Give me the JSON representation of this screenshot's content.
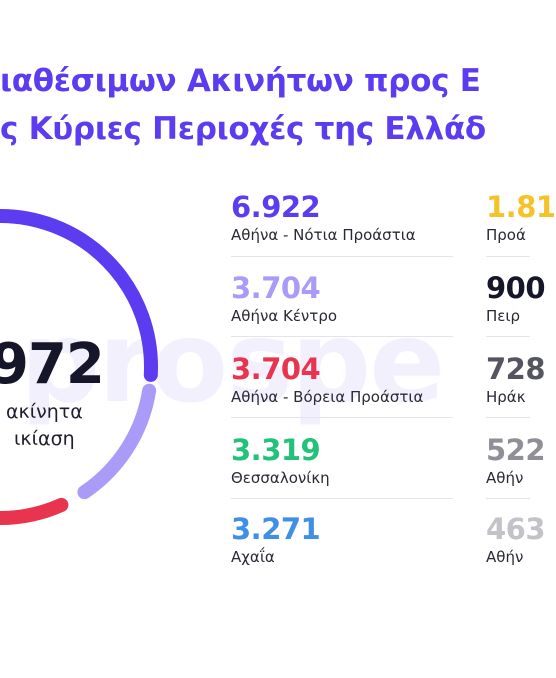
{
  "title": {
    "line1": "ιαθέσιμων Ακινήτων προς Ε",
    "line2": "ς Κύριες Περιοχές της Ελλάδ"
  },
  "watermark": "prospe",
  "total": {
    "value": "972",
    "line1": "ακίνητα",
    "line2": "ικίαση"
  },
  "chart_data": {
    "type": "pie",
    "style": "donut",
    "categories": [
      "Αθήνα - Νότια Προάστια",
      "Αθήνα Κέντρο",
      "Αθήνα - Βόρεια Προάστια"
    ],
    "values": [
      6922,
      3704,
      3704
    ],
    "colors": [
      "#5b3cf0",
      "#a99bf7",
      "#e8344e"
    ]
  },
  "stats": {
    "left": [
      {
        "value": "6.922",
        "label": "Αθήνα - Νότια Προάστια",
        "color": "#5b3cf0"
      },
      {
        "value": "3.704",
        "label": "Αθήνα Κέντρο",
        "color": "#a99bf7"
      },
      {
        "value": "3.704",
        "label": "Αθήνα - Βόρεια Προάστια",
        "color": "#e8344e"
      },
      {
        "value": "3.319",
        "label": "Θεσσαλονίκη",
        "color": "#22c27a"
      },
      {
        "value": "3.271",
        "label": "Αχαΐα",
        "color": "#3f8fe6"
      }
    ],
    "right": [
      {
        "value": "1.81",
        "label": "Προά",
        "color": "#f5c22a"
      },
      {
        "value": "900",
        "label": "Πειρ",
        "color": "#16162a"
      },
      {
        "value": "728",
        "label": "Ηράκ",
        "color": "#555560"
      },
      {
        "value": "522",
        "label": "Αθήν",
        "color": "#8f8f97"
      },
      {
        "value": "463",
        "label": "Αθήν",
        "color": "#c2c2c8"
      }
    ]
  }
}
